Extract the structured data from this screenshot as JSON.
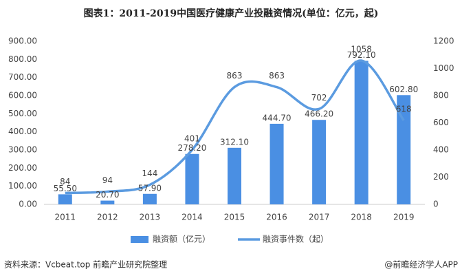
{
  "chart_data": {
    "type": "bar-line",
    "title": "图表1：2011-2019中国医疗健康产业投融资情况(单位：亿元，起)",
    "categories": [
      "2011",
      "2012",
      "2013",
      "2014",
      "2015",
      "2016",
      "2017",
      "2018",
      "2019"
    ],
    "series": [
      {
        "name": "融资额（亿元）",
        "type": "bar",
        "color": "#4a8fe3",
        "values": [
          55.5,
          20.7,
          57.9,
          278.2,
          312.1,
          444.7,
          466.2,
          792.1,
          602.8
        ],
        "value_labels": [
          "55.50",
          "20.70",
          "57.90",
          "278.20",
          "312.10",
          "444.70",
          "466.20",
          "792.10",
          "602.80"
        ]
      },
      {
        "name": "融资事件数（起）",
        "type": "line",
        "axis": "y2",
        "color": "#5b9be0",
        "values": [
          84,
          94,
          144,
          401,
          863,
          863,
          702,
          1058,
          618
        ]
      }
    ],
    "ylim": [
      0,
      900
    ],
    "yticks": [
      {
        "value": 0,
        "label": "0.00"
      },
      {
        "value": 100,
        "label": "100.00"
      },
      {
        "value": 200,
        "label": "200.00"
      },
      {
        "value": 300,
        "label": "300.00"
      },
      {
        "value": 400,
        "label": "400.00"
      },
      {
        "value": 500,
        "label": "500.00"
      },
      {
        "value": 600,
        "label": "600.00"
      },
      {
        "value": 700,
        "label": "700.00"
      },
      {
        "value": 800,
        "label": "800.00"
      },
      {
        "value": 900,
        "label": "900.00"
      }
    ],
    "y2lim": [
      0,
      1200
    ],
    "y2ticks": [
      0,
      200,
      400,
      600,
      800,
      1000,
      1200
    ],
    "legend": "bottom",
    "source": "资料来源：Vcbeat.top 前瞻产业研究院整理",
    "credit": "@前瞻经济学人APP"
  }
}
